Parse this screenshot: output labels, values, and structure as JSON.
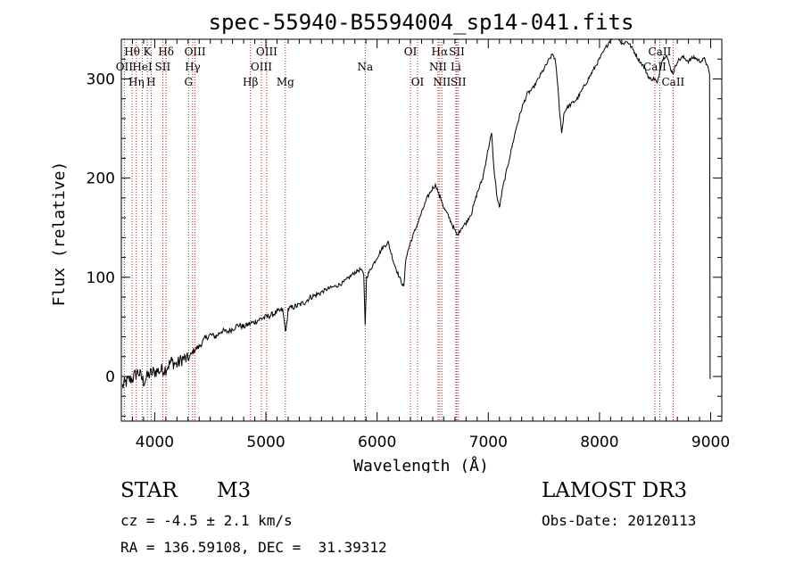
{
  "chart_data": {
    "type": "line",
    "title": "spec-55940-B5594004_sp14-041.fits",
    "xlabel": "Wavelength (Å)",
    "ylabel": "Flux (relative)",
    "xlim": [
      3700,
      9100
    ],
    "ylim": [
      -45,
      340
    ],
    "xticks": [
      4000,
      5000,
      6000,
      7000,
      8000,
      9000
    ],
    "xtick_labels": [
      "4000",
      "5000",
      "6000",
      "7000",
      "8000",
      "9000"
    ],
    "yticks": [
      0,
      100,
      200,
      300
    ],
    "ytick_labels": [
      "0",
      "100",
      "200",
      "300"
    ],
    "series": [
      {
        "name": "flux",
        "x": [
          3710,
          3750,
          3800,
          3850,
          3900,
          3950,
          4000,
          4050,
          4100,
          4150,
          4200,
          4250,
          4300,
          4350,
          4400,
          4450,
          4500,
          4550,
          4600,
          4650,
          4700,
          4750,
          4800,
          4850,
          4900,
          4950,
          5000,
          5050,
          5100,
          5150,
          5180,
          5200,
          5250,
          5300,
          5350,
          5400,
          5450,
          5500,
          5550,
          5600,
          5650,
          5700,
          5750,
          5800,
          5850,
          5880,
          5893,
          5905,
          5950,
          6000,
          6050,
          6100,
          6150,
          6200,
          6240,
          6260,
          6300,
          6350,
          6400,
          6450,
          6500,
          6530,
          6560,
          6580,
          6600,
          6640,
          6700,
          6720,
          6760,
          6800,
          6850,
          6900,
          6950,
          7000,
          7030,
          7050,
          7080,
          7100,
          7130,
          7150,
          7200,
          7250,
          7300,
          7350,
          7400,
          7450,
          7500,
          7550,
          7580,
          7600,
          7620,
          7640,
          7660,
          7680,
          7700,
          7750,
          7800,
          7850,
          7900,
          7950,
          8000,
          8050,
          8100,
          8150,
          8180,
          8200,
          8250,
          8300,
          8350,
          8400,
          8450,
          8498,
          8520,
          8542,
          8560,
          8600,
          8640,
          8662,
          8700,
          8750,
          8800,
          8850,
          8900,
          8950,
          8990,
          8995,
          9000
        ],
        "y": [
          -10,
          -5,
          -2,
          5,
          -5,
          2,
          5,
          6,
          8,
          15,
          12,
          18,
          17,
          26,
          30,
          38,
          42,
          40,
          46,
          45,
          48,
          52,
          50,
          53,
          55,
          58,
          60,
          62,
          65,
          67,
          44,
          68,
          70,
          72,
          75,
          80,
          82,
          85,
          88,
          90,
          92,
          95,
          100,
          105,
          108,
          103,
          52,
          100,
          110,
          120,
          130,
          135,
          115,
          100,
          90,
          120,
          135,
          150,
          165,
          180,
          190,
          193,
          182,
          178,
          170,
          162,
          147,
          142,
          150,
          155,
          165,
          185,
          200,
          230,
          245,
          210,
          180,
          170,
          190,
          200,
          225,
          250,
          270,
          285,
          290,
          300,
          310,
          320,
          325,
          320,
          300,
          270,
          245,
          265,
          270,
          275,
          280,
          290,
          300,
          310,
          320,
          330,
          340,
          345,
          340,
          335,
          338,
          330,
          320,
          312,
          300,
          300,
          295,
          308,
          318,
          325,
          310,
          306,
          318,
          322,
          318,
          322,
          318,
          320,
          305,
          -2,
          -2
        ]
      }
    ],
    "lines": [
      {
        "name": "Hθ",
        "wl": 3797,
        "row": 1
      },
      {
        "name": "OII",
        "wl": 3727,
        "row": 2
      },
      {
        "name": "Hη",
        "wl": 3835,
        "row": 3
      },
      {
        "name": "HeI",
        "wl": 3889,
        "row": 2
      },
      {
        "name": "K",
        "wl": 3934,
        "row": 1
      },
      {
        "name": "H",
        "wl": 3968,
        "row": 3
      },
      {
        "name": "SII",
        "wl": 4072,
        "row": 2
      },
      {
        "name": "Hδ",
        "wl": 4102,
        "row": 1
      },
      {
        "name": "G",
        "wl": 4304,
        "row": 3
      },
      {
        "name": "Hγ",
        "wl": 4341,
        "row": 2
      },
      {
        "name": "OIII",
        "wl": 4363,
        "row": 1
      },
      {
        "name": "Hβ",
        "wl": 4861,
        "row": 3
      },
      {
        "name": "OIII",
        "wl": 4959,
        "row": 2
      },
      {
        "name": "OIII",
        "wl": 5007,
        "row": 1
      },
      {
        "name": "Mg",
        "wl": 5175,
        "row": 3
      },
      {
        "name": "Na",
        "wl": 5893,
        "row": 2
      },
      {
        "name": "OI",
        "wl": 6300,
        "row": 1
      },
      {
        "name": "OI",
        "wl": 6364,
        "row": 3
      },
      {
        "name": "NII",
        "wl": 6548,
        "row": 2
      },
      {
        "name": "Hα",
        "wl": 6563,
        "row": 1
      },
      {
        "name": "NII",
        "wl": 6583,
        "row": 3
      },
      {
        "name": "Li",
        "wl": 6708,
        "row": 2
      },
      {
        "name": "SII",
        "wl": 6717,
        "row": 1
      },
      {
        "name": "SII",
        "wl": 6731,
        "row": 3
      },
      {
        "name": "CaII",
        "wl": 8498,
        "row": 2
      },
      {
        "name": "CaII",
        "wl": 8542,
        "row": 1
      },
      {
        "name": "CaII",
        "wl": 8662,
        "row": 3
      }
    ],
    "line_color": "#b22222",
    "curve_color": "#000000"
  },
  "info": {
    "object_class": "STAR",
    "subclass": "M3",
    "survey": "LAMOST DR3",
    "cz": "cz = -4.5 ± 2.1 km/s",
    "obs_date": "Obs-Date: 20120113",
    "coords": "RA = 136.59108, DEC =  31.39312"
  }
}
